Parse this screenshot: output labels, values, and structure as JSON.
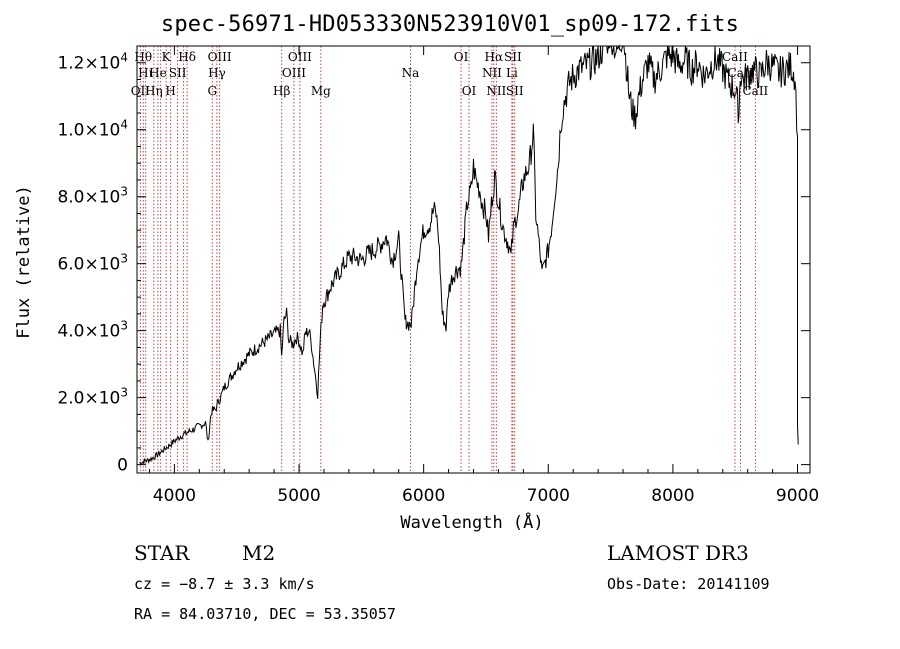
{
  "chart_data": {
    "type": "line",
    "title": "spec-56971-HD053330N523910V01_sp09-172.fits",
    "xlabel": "Wavelength (Å)",
    "ylabel": "Flux (relative)",
    "xlim": [
      3700,
      9100
    ],
    "ylim": [
      -250,
      12500
    ],
    "x_ticks": [
      {
        "value": 4000,
        "label": "4000"
      },
      {
        "value": 5000,
        "label": "5000"
      },
      {
        "value": 6000,
        "label": "6000"
      },
      {
        "value": 7000,
        "label": "7000"
      },
      {
        "value": 8000,
        "label": "8000"
      },
      {
        "value": 9000,
        "label": "9000"
      }
    ],
    "y_ticks": [
      {
        "value": 0,
        "mant": "0",
        "exp": ""
      },
      {
        "value": 2000,
        "mant": "2.0×10",
        "exp": "3"
      },
      {
        "value": 4000,
        "mant": "4.0×10",
        "exp": "3"
      },
      {
        "value": 6000,
        "mant": "6.0×10",
        "exp": "3"
      },
      {
        "value": 8000,
        "mant": "8.0×10",
        "exp": "3"
      },
      {
        "value": 10000,
        "mant": "1.0×10",
        "exp": "4"
      },
      {
        "value": 12000,
        "mant": "1.2×10",
        "exp": "4"
      }
    ],
    "series": [
      {
        "name": "flux",
        "x": [
          3720,
          3760,
          3800,
          3850,
          3900,
          3950,
          4000,
          4050,
          4100,
          4150,
          4200,
          4250,
          4270,
          4290,
          4300,
          4330,
          4350,
          4380,
          4400,
          4450,
          4500,
          4550,
          4600,
          4650,
          4700,
          4750,
          4800,
          4850,
          4860,
          4880,
          4900,
          4920,
          4950,
          4980,
          5000,
          5030,
          5050,
          5080,
          5100,
          5150,
          5170,
          5190,
          5200,
          5220,
          5250,
          5300,
          5350,
          5400,
          5450,
          5500,
          5550,
          5600,
          5650,
          5700,
          5750,
          5800,
          5850,
          5880,
          5900,
          5920,
          5950,
          6000,
          6050,
          6080,
          6100,
          6120,
          6150,
          6180,
          6200,
          6230,
          6260,
          6300,
          6320,
          6350,
          6380,
          6400,
          6420,
          6450,
          6470,
          6500,
          6520,
          6550,
          6570,
          6600,
          6630,
          6650,
          6680,
          6700,
          6720,
          6740,
          6760,
          6800,
          6850,
          6880,
          6900,
          6920,
          6950,
          7000,
          7030,
          7050,
          7080,
          7100,
          7120,
          7140,
          7170,
          7200,
          7250,
          7300,
          7350,
          7400,
          7450,
          7500,
          7550,
          7580,
          7600,
          7620,
          7650,
          7680,
          7700,
          7720,
          7750,
          7800,
          7850,
          7900,
          7950,
          8000,
          8050,
          8100,
          8150,
          8200,
          8250,
          8300,
          8350,
          8400,
          8450,
          8500,
          8530,
          8540,
          8560,
          8600,
          8650,
          8700,
          8750,
          8800,
          8850,
          8900,
          8950,
          8980,
          9000
        ],
        "y": [
          50,
          100,
          150,
          250,
          400,
          550,
          700,
          850,
          950,
          1050,
          1150,
          1250,
          650,
          1400,
          1600,
          1650,
          1850,
          2100,
          2300,
          2600,
          2900,
          3100,
          3300,
          3450,
          3600,
          3750,
          3900,
          4000,
          3200,
          4300,
          4500,
          3700,
          3600,
          3800,
          3700,
          3300,
          3900,
          4000,
          3600,
          2100,
          3700,
          4800,
          4900,
          5000,
          5300,
          5600,
          5900,
          6200,
          6200,
          6100,
          6300,
          6400,
          6550,
          6800,
          6100,
          6700,
          4300,
          4200,
          4200,
          4900,
          6100,
          7000,
          7200,
          7600,
          7500,
          6800,
          4500,
          4100,
          5200,
          5600,
          5800,
          5900,
          6600,
          7800,
          8200,
          8900,
          8500,
          8200,
          7800,
          7500,
          6800,
          8000,
          8600,
          7900,
          7200,
          6900,
          6600,
          6200,
          7000,
          7400,
          7600,
          8500,
          9000,
          9900,
          7500,
          6800,
          5700,
          6400,
          7200,
          8000,
          9000,
          10200,
          10700,
          11000,
          11400,
          11600,
          11800,
          11900,
          12000,
          12200,
          12500,
          12900,
          12300,
          12600,
          13000,
          12200,
          11000,
          10500,
          10400,
          10900,
          11400,
          12000,
          11500,
          11800,
          12200,
          12200,
          11900,
          12100,
          11800,
          12000,
          11600,
          11900,
          12100,
          11800,
          11400,
          11200,
          10500,
          11700,
          11500,
          11600,
          11800,
          11600,
          12000,
          11900,
          11700,
          11800,
          11900,
          11600,
          9800
        ],
        "color": "#000000"
      }
    ],
    "lines": [
      {
        "wl": 3727,
        "label": "OII",
        "row": 2
      },
      {
        "wl": 3750,
        "label": "Hθ",
        "row": 0
      },
      {
        "wl": 3770,
        "label": "Hι",
        "row": 1
      },
      {
        "wl": 3835,
        "label": "Hη",
        "row": 2
      },
      {
        "wl": 3868,
        "label": "He",
        "row": 1
      },
      {
        "wl": 3890,
        "label": "",
        "row": 1
      },
      {
        "wl": 3934,
        "label": "K",
        "row": 0
      },
      {
        "wl": 3970,
        "label": "H",
        "row": 2
      },
      {
        "wl": 4026,
        "label": "SII",
        "row": 1
      },
      {
        "wl": 4072,
        "label": "",
        "row": 1
      },
      {
        "wl": 4102,
        "label": "Hδ",
        "row": 0
      },
      {
        "wl": 4304,
        "label": "G",
        "row": 2
      },
      {
        "wl": 4341,
        "label": "Hγ",
        "row": 1
      },
      {
        "wl": 4363,
        "label": "OIII",
        "row": 0
      },
      {
        "wl": 4861,
        "label": "Hβ",
        "row": 2
      },
      {
        "wl": 4959,
        "label": "OIII",
        "row": 1
      },
      {
        "wl": 5007,
        "label": "OIII",
        "row": 0
      },
      {
        "wl": 5175,
        "label": "Mg",
        "row": 2
      },
      {
        "wl": 5894,
        "label": "Na",
        "row": 1
      },
      {
        "wl": 6300,
        "label": "OI",
        "row": 0
      },
      {
        "wl": 6364,
        "label": "OI",
        "row": 2
      },
      {
        "wl": 6548,
        "label": "NII",
        "row": 1
      },
      {
        "wl": 6563,
        "label": "Hα",
        "row": 0
      },
      {
        "wl": 6583,
        "label": "NII",
        "row": 2
      },
      {
        "wl": 6708,
        "label": "Li",
        "row": 1
      },
      {
        "wl": 6716,
        "label": "SII",
        "row": 0
      },
      {
        "wl": 6731,
        "label": "SII",
        "row": 2
      },
      {
        "wl": 8498,
        "label": "CaII",
        "row": 0
      },
      {
        "wl": 8542,
        "label": "CaII",
        "row": 1
      },
      {
        "wl": 8662,
        "label": "CaII",
        "row": 2
      }
    ]
  },
  "info": {
    "class": "STAR",
    "subclass": "M2",
    "survey": "LAMOST DR3",
    "cz": "cz = −8.7 ± 3.3 km/s",
    "obs_date": "Obs-Date: 20141109",
    "radec": "RA =  84.03710, DEC =  53.35057"
  }
}
